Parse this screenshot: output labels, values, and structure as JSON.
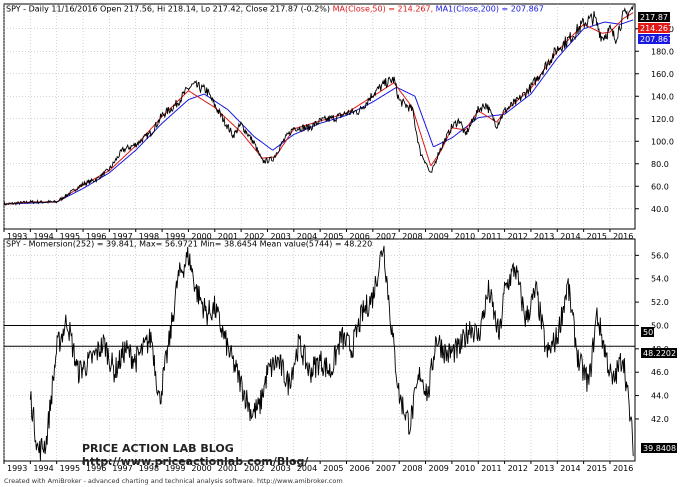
{
  "colors": {
    "price": "#000000",
    "ma50": "#e01818",
    "ma200": "#1818e0",
    "grid": "#aaaaaa",
    "badge_dark": "#000000",
    "badge_red": "#e01818",
    "badge_blue": "#1818e0"
  },
  "top_panel": {
    "header_prefix": "SPY - Daily 11/16/2016 Open 217.56, Hi 218.14, Lo 217.42, Close 217.87 (-0.2%)",
    "ma50_label": "MA(Close,50) = 214.267,",
    "ma200_label": "MA1(Close,200) = 207.867",
    "badges": [
      "217.87",
      "214.267",
      "207.867"
    ]
  },
  "bottom_panel": {
    "header": "SPY - Momersion(252) = 39.841, Max= 56.9721 Min= 38.6454 Mean value(5744) = 48.220",
    "level_badges": [
      "50",
      "48.2202",
      "39.8408"
    ]
  },
  "watermark": {
    "line1": "PRICE ACTION LAB BLOG",
    "line2": "http://www.priceactionlab.com/Blog/"
  },
  "footer": "Created with AmiBroker - advanced charting and technical analysis software. http://www.amibroker.com",
  "chart_data": [
    {
      "type": "line",
      "title": "SPY - Daily 11/16/2016",
      "x_categories": [
        "1993",
        "1994",
        "1995",
        "1996",
        "1997",
        "1998",
        "1999",
        "2000",
        "2001",
        "2002",
        "2003",
        "2004",
        "2005",
        "2006",
        "2007",
        "2008",
        "2009",
        "2010",
        "2011",
        "2012",
        "2013",
        "2014",
        "2015",
        "2016"
      ],
      "y_ticks": [
        40,
        60,
        80,
        100,
        120,
        140,
        160,
        180,
        200
      ],
      "ylim": [
        22,
        222
      ],
      "grid": true,
      "series": [
        {
          "name": "SPY",
          "color": "#000000",
          "x": [
            1993.0,
            1994.0,
            1995.0,
            1996.0,
            1996.5,
            1997.0,
            1997.5,
            1998.0,
            1998.6,
            1999.0,
            1999.5,
            2000.0,
            2000.2,
            2000.7,
            2001.0,
            2001.7,
            2002.0,
            2002.5,
            2002.8,
            2003.2,
            2003.6,
            2004.0,
            2004.6,
            2005.0,
            2005.6,
            2006.0,
            2006.5,
            2007.0,
            2007.5,
            2007.8,
            2008.0,
            2008.5,
            2008.8,
            2009.0,
            2009.2,
            2009.5,
            2010.0,
            2010.3,
            2010.5,
            2011.0,
            2011.3,
            2011.7,
            2012.0,
            2012.5,
            2013.0,
            2013.5,
            2014.0,
            2014.5,
            2015.0,
            2015.4,
            2015.7,
            2016.0,
            2016.2,
            2016.5,
            2016.88
          ],
          "values": [
            44,
            46,
            46,
            62,
            66,
            75,
            92,
            97,
            108,
            123,
            132,
            147,
            150,
            145,
            132,
            105,
            115,
            98,
            82,
            84,
            100,
            112,
            112,
            118,
            121,
            125,
            127,
            142,
            152,
            155,
            136,
            128,
            90,
            82,
            70,
            90,
            113,
            119,
            105,
            128,
            133,
            114,
            127,
            136,
            148,
            165,
            182,
            192,
            205,
            210,
            192,
            199,
            191,
            211,
            218
          ]
        },
        {
          "name": "MA(Close,50)",
          "color": "#e01818",
          "x": [
            1993.0,
            1994.0,
            1995.0,
            1996.0,
            1997.0,
            1998.0,
            1999.0,
            2000.0,
            2001.0,
            2002.0,
            2002.8,
            2003.3,
            2004.0,
            2005.0,
            2006.0,
            2007.0,
            2007.8,
            2008.5,
            2009.2,
            2009.6,
            2010.0,
            2010.5,
            2011.0,
            2011.7,
            2012.0,
            2013.0,
            2014.0,
            2015.0,
            2015.7,
            2016.0,
            2016.5,
            2016.88
          ],
          "values": [
            44,
            46,
            46,
            61,
            74,
            96,
            122,
            145,
            130,
            108,
            85,
            86,
            111,
            118,
            125,
            140,
            152,
            130,
            78,
            92,
            112,
            110,
            127,
            117,
            126,
            147,
            180,
            204,
            196,
            197,
            209,
            214.267
          ]
        },
        {
          "name": "MA1(Close,200)",
          "color": "#1818e0",
          "x": [
            1993.0,
            1994.0,
            1995.0,
            1996.0,
            1997.0,
            1998.0,
            1999.0,
            2000.0,
            2000.6,
            2001.5,
            2002.5,
            2003.2,
            2004.0,
            2005.0,
            2006.0,
            2007.0,
            2007.9,
            2008.6,
            2009.3,
            2010.0,
            2011.0,
            2012.0,
            2013.0,
            2014.0,
            2015.0,
            2015.8,
            2016.4,
            2016.88
          ],
          "values": [
            44,
            45,
            46,
            58,
            72,
            92,
            116,
            137,
            142,
            128,
            104,
            92,
            106,
            116,
            123,
            135,
            148,
            140,
            95,
            103,
            121,
            124,
            142,
            174,
            200,
            206,
            204,
            207.867
          ]
        }
      ]
    },
    {
      "type": "line",
      "title": "SPY - Momersion(252)",
      "x_categories": [
        "1993",
        "1994",
        "1995",
        "1996",
        "1997",
        "1998",
        "1999",
        "2000",
        "2001",
        "2002",
        "2003",
        "2004",
        "2005",
        "2006",
        "2007",
        "2008",
        "2009",
        "2010",
        "2011",
        "2012",
        "2013",
        "2014",
        "2015",
        "2016"
      ],
      "y_ticks": [
        42.0,
        44.0,
        46.0,
        48.0,
        50.0,
        52.0,
        54.0,
        56.0
      ],
      "ylim": [
        38.4,
        57.4
      ],
      "reference_lines": [
        50,
        48.2202
      ],
      "grid": true,
      "series": [
        {
          "name": "Momersion(252)",
          "color": "#000000",
          "x": [
            1994.0,
            1994.3,
            1994.6,
            1995.0,
            1995.4,
            1995.8,
            1996.3,
            1996.8,
            1997.2,
            1997.6,
            1998.0,
            1998.6,
            1998.9,
            1999.3,
            1999.6,
            2000.0,
            2000.3,
            2000.7,
            2001.0,
            2001.5,
            2002.0,
            2002.4,
            2002.7,
            2003.0,
            2003.4,
            2003.8,
            2004.2,
            2004.6,
            2005.0,
            2005.4,
            2005.8,
            2006.2,
            2006.6,
            2007.0,
            2007.4,
            2007.7,
            2008.0,
            2008.4,
            2008.8,
            2009.1,
            2009.4,
            2009.8,
            2010.3,
            2010.7,
            2011.0,
            2011.4,
            2011.8,
            2012.0,
            2012.4,
            2012.8,
            2013.2,
            2013.6,
            2014.0,
            2014.4,
            2014.8,
            2015.2,
            2015.5,
            2015.8,
            2016.1,
            2016.5,
            2016.88
          ],
          "values": [
            44,
            39.2,
            40,
            48,
            50.5,
            46,
            47,
            48.5,
            46,
            48,
            47,
            49,
            43.5,
            49,
            54,
            56,
            53,
            51,
            51.5,
            48,
            45,
            42.5,
            43,
            46,
            47,
            45,
            48.5,
            46,
            47,
            46,
            49,
            48,
            51,
            52.5,
            57,
            50,
            44,
            41.5,
            46,
            44,
            49,
            47.5,
            48,
            50,
            49,
            53,
            49,
            53,
            55,
            50.5,
            53,
            47.5,
            49,
            53.5,
            47,
            45,
            51,
            48,
            45,
            47.5,
            39.8408
          ]
        }
      ]
    }
  ]
}
